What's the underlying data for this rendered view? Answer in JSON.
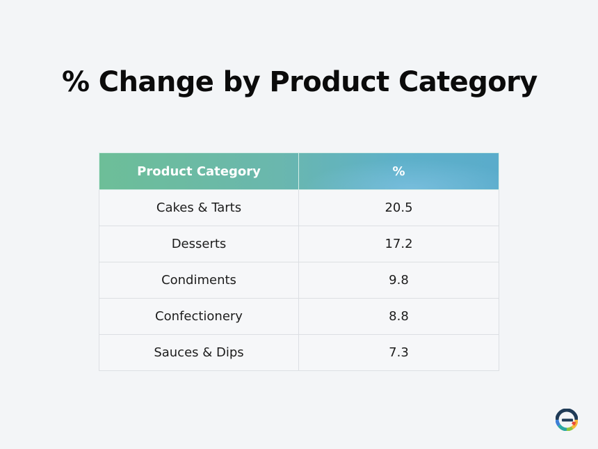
{
  "slide": {
    "title": "% Change by Product Category"
  },
  "table": {
    "headers": [
      "Product Category",
      "%"
    ],
    "rows": [
      [
        "Cakes & Tarts",
        "20.5"
      ],
      [
        "Desserts",
        "17.2"
      ],
      [
        "Condiments",
        "9.8"
      ],
      [
        "Confectionery",
        "8.8"
      ],
      [
        "Sauces & Dips",
        "7.3"
      ]
    ],
    "header_colors": [
      "#6dbe98",
      "#5aaccb"
    ]
  },
  "logo": {
    "icon": "brand-logo-icon",
    "colors": [
      "#1f3b57",
      "#e94b3c",
      "#f6b93b",
      "#8cc63f",
      "#2aa7a1",
      "#3d7fd6"
    ]
  }
}
